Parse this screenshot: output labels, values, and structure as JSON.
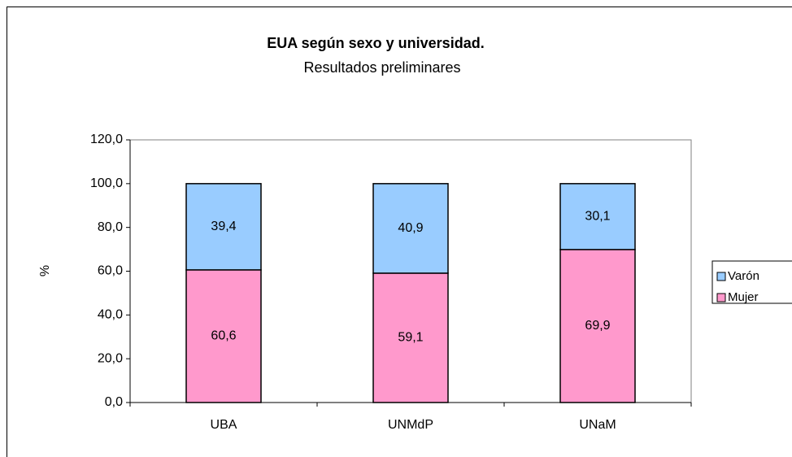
{
  "chart_data": {
    "type": "stacked_bar",
    "title": "EUA según sexo y universidad.",
    "subtitle": "Resultados preliminares",
    "y_label": "%",
    "categories": [
      "UBA",
      "UNMdP",
      "UNaM"
    ],
    "series": [
      {
        "name": "Mujer",
        "color": "#ff99cc",
        "values": [
          60.6,
          59.1,
          69.9
        ],
        "value_labels": [
          "60,6",
          "59,1",
          "69,9"
        ]
      },
      {
        "name": "Varón",
        "color": "#99ccff",
        "values": [
          39.4,
          40.9,
          30.1
        ],
        "value_labels": [
          "39,4",
          "40,9",
          "30,1"
        ]
      }
    ],
    "ylim": [
      0,
      120
    ],
    "yticks": [
      {
        "value": 0,
        "label": "0,0"
      },
      {
        "value": 20,
        "label": "20,0"
      },
      {
        "value": 40,
        "label": "40,0"
      },
      {
        "value": 60,
        "label": "60,0"
      },
      {
        "value": 80,
        "label": "80,0"
      },
      {
        "value": 100,
        "label": "100,0"
      },
      {
        "value": 120,
        "label": "120,0"
      }
    ],
    "grid": false,
    "legend": "right"
  }
}
